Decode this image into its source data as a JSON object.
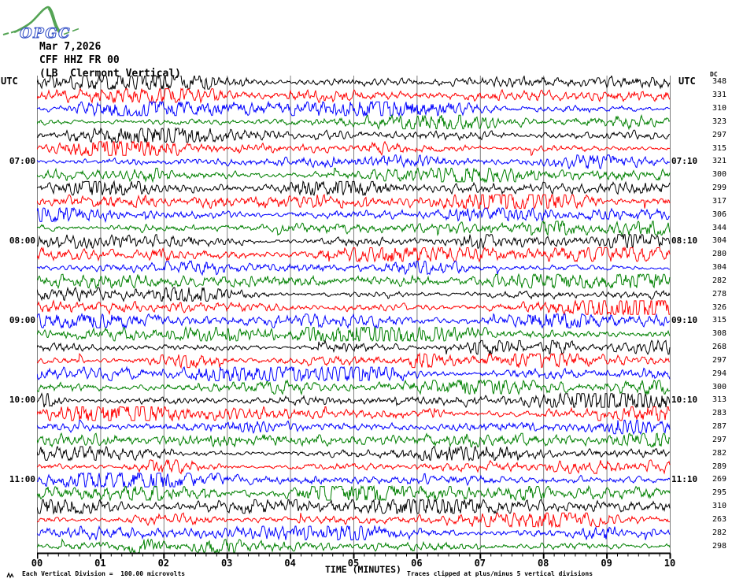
{
  "header": {
    "logo_text": "OPGC",
    "date": "Mar 7,2026",
    "station": "CFF HHZ FR 00",
    "location": "(LB  Clermont Vertical)"
  },
  "axes": {
    "utc_left": "UTC",
    "utc_right": "UTC",
    "dc_header": "DC",
    "xlabel": "TIME (MINUTES)",
    "x_ticks": [
      "00",
      "01",
      "02",
      "03",
      "04",
      "05",
      "06",
      "07",
      "08",
      "09",
      "10"
    ]
  },
  "footer": {
    "scale_note": "Each Vertical Division =  100.00 microvolts",
    "clip_note": "Traces clipped at plus/minus 5 vertical divisions"
  },
  "colors": {
    "black": "#000000",
    "red": "#ff0000",
    "blue": "#0000ff",
    "green": "#008000",
    "grid": "#808080",
    "axis": "#000000",
    "logo_green": "#55a455",
    "logo_blue": "#3a56c8"
  },
  "chart_data": {
    "type": "line",
    "title": "Helicorder drum record, CFF HHZ FR 00 (LB Clermont Vertical), Mar 7,2026",
    "xlabel": "TIME (MINUTES)",
    "x_range_minutes": [
      0,
      10
    ],
    "x_major_tick_minutes": 1,
    "x_minor_ticks_per_division": 6,
    "rows": 36,
    "grid": "vertical lines at every minute",
    "scale_microvolts_per_division": 100.0,
    "clip_divisions": 5,
    "color_cycle": [
      "#000000",
      "#ff0000",
      "#0000ff",
      "#008000"
    ],
    "waveform_note": "continuous ambient seismic noise; squiggles regenerated procedurally per row (not readable as exact values from pixels)",
    "traces": [
      {
        "dc": 348,
        "color": "#000000"
      },
      {
        "dc": 331,
        "color": "#ff0000"
      },
      {
        "dc": 310,
        "color": "#0000ff"
      },
      {
        "dc": 323,
        "color": "#008000"
      },
      {
        "dc": 297,
        "color": "#000000"
      },
      {
        "dc": 315,
        "color": "#ff0000"
      },
      {
        "dc": 321,
        "color": "#0000ff",
        "utc_left": "07:00",
        "utc_right": "07:10"
      },
      {
        "dc": 300,
        "color": "#008000"
      },
      {
        "dc": 299,
        "color": "#000000"
      },
      {
        "dc": 317,
        "color": "#ff0000"
      },
      {
        "dc": 306,
        "color": "#0000ff"
      },
      {
        "dc": 344,
        "color": "#008000"
      },
      {
        "dc": 304,
        "color": "#000000",
        "utc_left": "08:00",
        "utc_right": "08:10"
      },
      {
        "dc": 280,
        "color": "#ff0000"
      },
      {
        "dc": 304,
        "color": "#0000ff"
      },
      {
        "dc": 282,
        "color": "#008000"
      },
      {
        "dc": 278,
        "color": "#000000"
      },
      {
        "dc": 326,
        "color": "#ff0000"
      },
      {
        "dc": 315,
        "color": "#0000ff",
        "utc_left": "09:00",
        "utc_right": "09:10"
      },
      {
        "dc": 308,
        "color": "#008000"
      },
      {
        "dc": 268,
        "color": "#000000"
      },
      {
        "dc": 297,
        "color": "#ff0000"
      },
      {
        "dc": 294,
        "color": "#0000ff"
      },
      {
        "dc": 300,
        "color": "#008000"
      },
      {
        "dc": 313,
        "color": "#000000",
        "utc_left": "10:00",
        "utc_right": "10:10"
      },
      {
        "dc": 283,
        "color": "#ff0000"
      },
      {
        "dc": 287,
        "color": "#0000ff"
      },
      {
        "dc": 297,
        "color": "#008000"
      },
      {
        "dc": 282,
        "color": "#000000"
      },
      {
        "dc": 289,
        "color": "#ff0000"
      },
      {
        "dc": 269,
        "color": "#0000ff",
        "utc_left": "11:00",
        "utc_right": "11:10"
      },
      {
        "dc": 295,
        "color": "#008000"
      },
      {
        "dc": 310,
        "color": "#000000"
      },
      {
        "dc": 263,
        "color": "#ff0000"
      },
      {
        "dc": 282,
        "color": "#0000ff"
      },
      {
        "dc": 298,
        "color": "#008000"
      }
    ]
  }
}
